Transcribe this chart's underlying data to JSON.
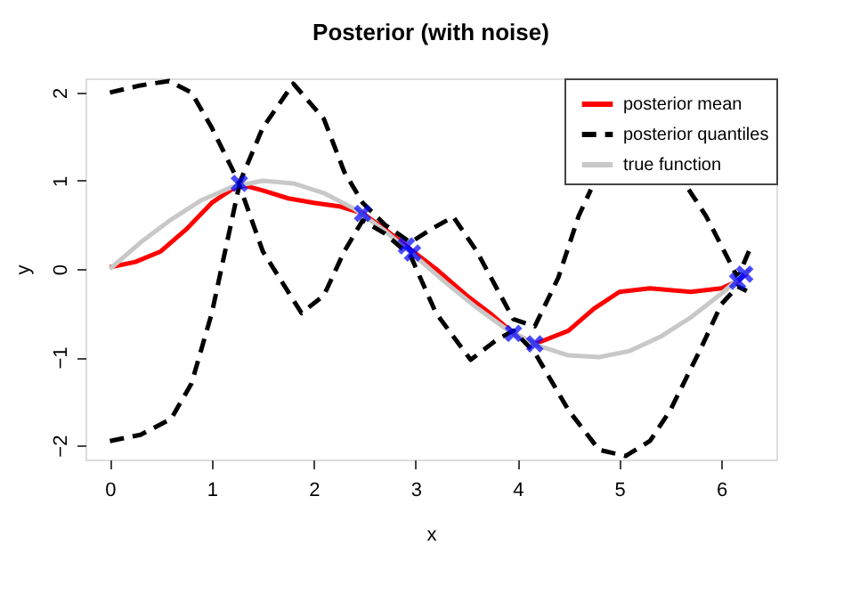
{
  "chart_data": {
    "type": "line",
    "title": "Posterior (with noise)",
    "xlabel": "x",
    "ylabel": "y",
    "xlim": [
      -0.24,
      6.54
    ],
    "ylim": [
      -2.16,
      2.16
    ],
    "xticks": [
      0,
      1,
      2,
      3,
      4,
      5,
      6
    ],
    "yticks": [
      -2,
      -1,
      0,
      1,
      2
    ],
    "grid": false,
    "legend": "top right",
    "series": [
      {
        "name": "posterior mean",
        "color": "#ff0000",
        "line_style": "solid",
        "x": [
          0,
          0.25,
          0.5,
          0.75,
          1.0,
          1.27,
          1.5,
          1.75,
          2.0,
          2.25,
          2.48,
          2.7,
          2.95,
          3.2,
          3.5,
          3.75,
          3.96,
          4.17,
          4.5,
          4.75,
          5.0,
          5.3,
          5.7,
          6.0,
          6.16,
          6.25
        ],
        "values": [
          0.02,
          0.08,
          0.2,
          0.45,
          0.75,
          0.96,
          0.89,
          0.8,
          0.75,
          0.71,
          0.63,
          0.45,
          0.22,
          0.0,
          -0.3,
          -0.52,
          -0.73,
          -0.85,
          -0.7,
          -0.45,
          -0.26,
          -0.22,
          -0.26,
          -0.22,
          -0.14,
          -0.05
        ]
      },
      {
        "name": "posterior quantiles",
        "color": "#000000",
        "line_style": "dashed",
        "x": [
          0,
          0.3,
          0.58,
          0.8,
          1.0,
          1.27,
          1.5,
          1.8,
          2.1,
          2.3,
          2.48,
          2.7,
          2.95,
          3.15,
          3.37,
          3.6,
          3.96,
          4.17,
          4.4,
          4.6,
          4.72,
          4.9,
          5.4,
          5.68,
          5.85,
          6.1,
          6.16,
          6.3
        ],
        "values": [
          2.0,
          2.08,
          2.13,
          2.0,
          1.6,
          0.97,
          1.6,
          2.1,
          1.7,
          1.1,
          0.75,
          0.5,
          0.3,
          0.45,
          0.59,
          0.2,
          -0.57,
          -0.65,
          -0.1,
          0.6,
          0.9,
          null,
          null,
          0.9,
          0.6,
          0.04,
          -0.1,
          0.28
        ]
      },
      {
        "color": "#000000",
        "line_style": "dashed",
        "x": [
          0,
          0.3,
          0.6,
          0.8,
          1.0,
          1.27,
          1.5,
          1.88,
          2.1,
          2.3,
          2.48,
          2.7,
          2.95,
          3.2,
          3.54,
          3.8,
          3.96,
          4.17,
          4.5,
          4.8,
          5.06,
          5.3,
          5.5,
          5.8,
          6.0,
          6.16,
          6.25
        ],
        "values": [
          -1.95,
          -1.88,
          -1.7,
          -1.3,
          -0.5,
          0.95,
          0.2,
          -0.5,
          -0.3,
          0.2,
          0.55,
          0.4,
          0.15,
          -0.5,
          -1.03,
          -0.8,
          -0.7,
          -0.95,
          -1.6,
          -2.05,
          -2.12,
          -1.95,
          -1.6,
          -0.9,
          -0.4,
          -0.2,
          -0.25
        ]
      },
      {
        "name": "true function",
        "color": "#c8c8c8",
        "line_style": "solid",
        "x": [
          0,
          0.3,
          0.6,
          0.9,
          1.2,
          1.5,
          1.8,
          2.1,
          2.4,
          2.7,
          3.0,
          3.3,
          3.6,
          3.9,
          4.2,
          4.5,
          4.8,
          5.1,
          5.4,
          5.7,
          6.0,
          6.28
        ],
        "values": [
          0,
          0.3,
          0.56,
          0.78,
          0.93,
          1.0,
          0.97,
          0.86,
          0.68,
          0.43,
          0.14,
          -0.16,
          -0.44,
          -0.69,
          -0.87,
          -0.98,
          -1.0,
          -0.93,
          -0.77,
          -0.55,
          -0.28,
          0
        ]
      },
      {
        "type": "scatter",
        "marker": "cross",
        "color": "#0000ff",
        "x": [
          1.27,
          2.48,
          2.91,
          2.97,
          3.96,
          4.17,
          6.16,
          6.23
        ],
        "values": [
          0.97,
          0.63,
          0.26,
          0.18,
          -0.73,
          -0.85,
          -0.14,
          -0.06
        ]
      }
    ]
  }
}
